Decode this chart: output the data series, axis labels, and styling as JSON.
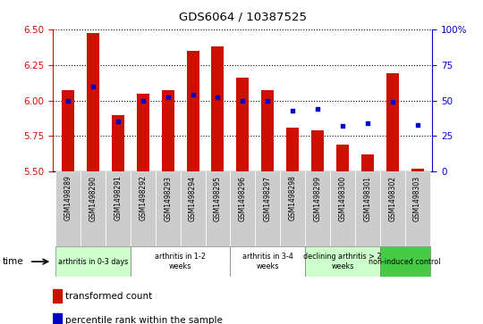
{
  "title": "GDS6064 / 10387525",
  "samples": [
    "GSM1498289",
    "GSM1498290",
    "GSM1498291",
    "GSM1498292",
    "GSM1498293",
    "GSM1498294",
    "GSM1498295",
    "GSM1498296",
    "GSM1498297",
    "GSM1498298",
    "GSM1498299",
    "GSM1498300",
    "GSM1498301",
    "GSM1498302",
    "GSM1498303"
  ],
  "transformed_count": [
    6.07,
    6.47,
    5.9,
    6.05,
    6.07,
    6.35,
    6.38,
    6.16,
    6.07,
    5.81,
    5.79,
    5.69,
    5.62,
    6.19,
    5.52
  ],
  "percentile_rank": [
    50,
    60,
    35,
    50,
    52,
    54,
    52,
    50,
    50,
    43,
    44,
    32,
    34,
    49,
    33
  ],
  "ylim_left": [
    5.5,
    6.5
  ],
  "ylim_right": [
    0,
    100
  ],
  "yticks_left": [
    5.5,
    5.75,
    6.0,
    6.25,
    6.5
  ],
  "yticks_right": [
    0,
    25,
    50,
    75,
    100
  ],
  "groups": [
    {
      "label": "arthritis in 0-3 days",
      "indices": [
        0,
        1,
        2
      ],
      "color": "#ccffcc"
    },
    {
      "label": "arthritis in 1-2\nweeks",
      "indices": [
        3,
        4,
        5,
        6
      ],
      "color": "#ffffff"
    },
    {
      "label": "arthritis in 3-4\nweeks",
      "indices": [
        7,
        8,
        9
      ],
      "color": "#ffffff"
    },
    {
      "label": "declining arthritis > 2\nweeks",
      "indices": [
        10,
        11,
        12
      ],
      "color": "#ccffcc"
    },
    {
      "label": "non-induced control",
      "indices": [
        13,
        14
      ],
      "color": "#44cc44"
    }
  ],
  "bar_color": "#cc1100",
  "dot_color": "#0000cc",
  "baseline": 5.5,
  "grid_color": "#000000",
  "bg_color": "#ffffff",
  "tick_label_color_left": "#cc1100",
  "tick_label_color_right": "#0000cc",
  "cell_bg": "#cccccc",
  "legend_items": [
    {
      "label": "transformed count",
      "color": "#cc1100"
    },
    {
      "label": "percentile rank within the sample",
      "color": "#0000cc"
    }
  ]
}
